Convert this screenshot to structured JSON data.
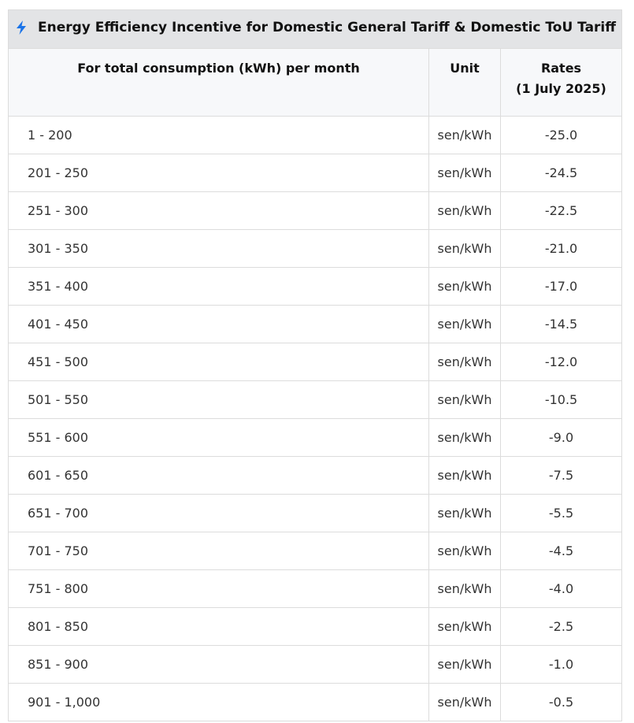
{
  "table": {
    "title": "Energy Efficiency Incentive for Domestic General Tariff & Domestic ToU Tariff",
    "title_icon": "lightning-bolt-icon",
    "accent_color": "#1a73e8",
    "columns": {
      "consumption": "For total consumption (kWh) per month",
      "unit": "Unit",
      "rates_line1": "Rates",
      "rates_line2": "(1 July 2025)"
    },
    "rows": [
      {
        "range": "1 - 200",
        "unit": "sen/kWh",
        "rate": "-25.0"
      },
      {
        "range": "201 - 250",
        "unit": "sen/kWh",
        "rate": "-24.5"
      },
      {
        "range": "251 - 300",
        "unit": "sen/kWh",
        "rate": "-22.5"
      },
      {
        "range": "301 - 350",
        "unit": "sen/kWh",
        "rate": "-21.0"
      },
      {
        "range": "351 - 400",
        "unit": "sen/kWh",
        "rate": "-17.0"
      },
      {
        "range": "401 - 450",
        "unit": "sen/kWh",
        "rate": "-14.5"
      },
      {
        "range": "451 - 500",
        "unit": "sen/kWh",
        "rate": "-12.0"
      },
      {
        "range": "501 - 550",
        "unit": "sen/kWh",
        "rate": "-10.5"
      },
      {
        "range": "551 - 600",
        "unit": "sen/kWh",
        "rate": "-9.0"
      },
      {
        "range": "601 - 650",
        "unit": "sen/kWh",
        "rate": "-7.5"
      },
      {
        "range": "651 - 700",
        "unit": "sen/kWh",
        "rate": "-5.5"
      },
      {
        "range": "701 - 750",
        "unit": "sen/kWh",
        "rate": "-4.5"
      },
      {
        "range": "751 - 800",
        "unit": "sen/kWh",
        "rate": "-4.0"
      },
      {
        "range": "801 - 850",
        "unit": "sen/kWh",
        "rate": "-2.5"
      },
      {
        "range": "851 - 900",
        "unit": "sen/kWh",
        "rate": "-1.0"
      },
      {
        "range": "901 - 1,000",
        "unit": "sen/kWh",
        "rate": "-0.5"
      }
    ]
  }
}
